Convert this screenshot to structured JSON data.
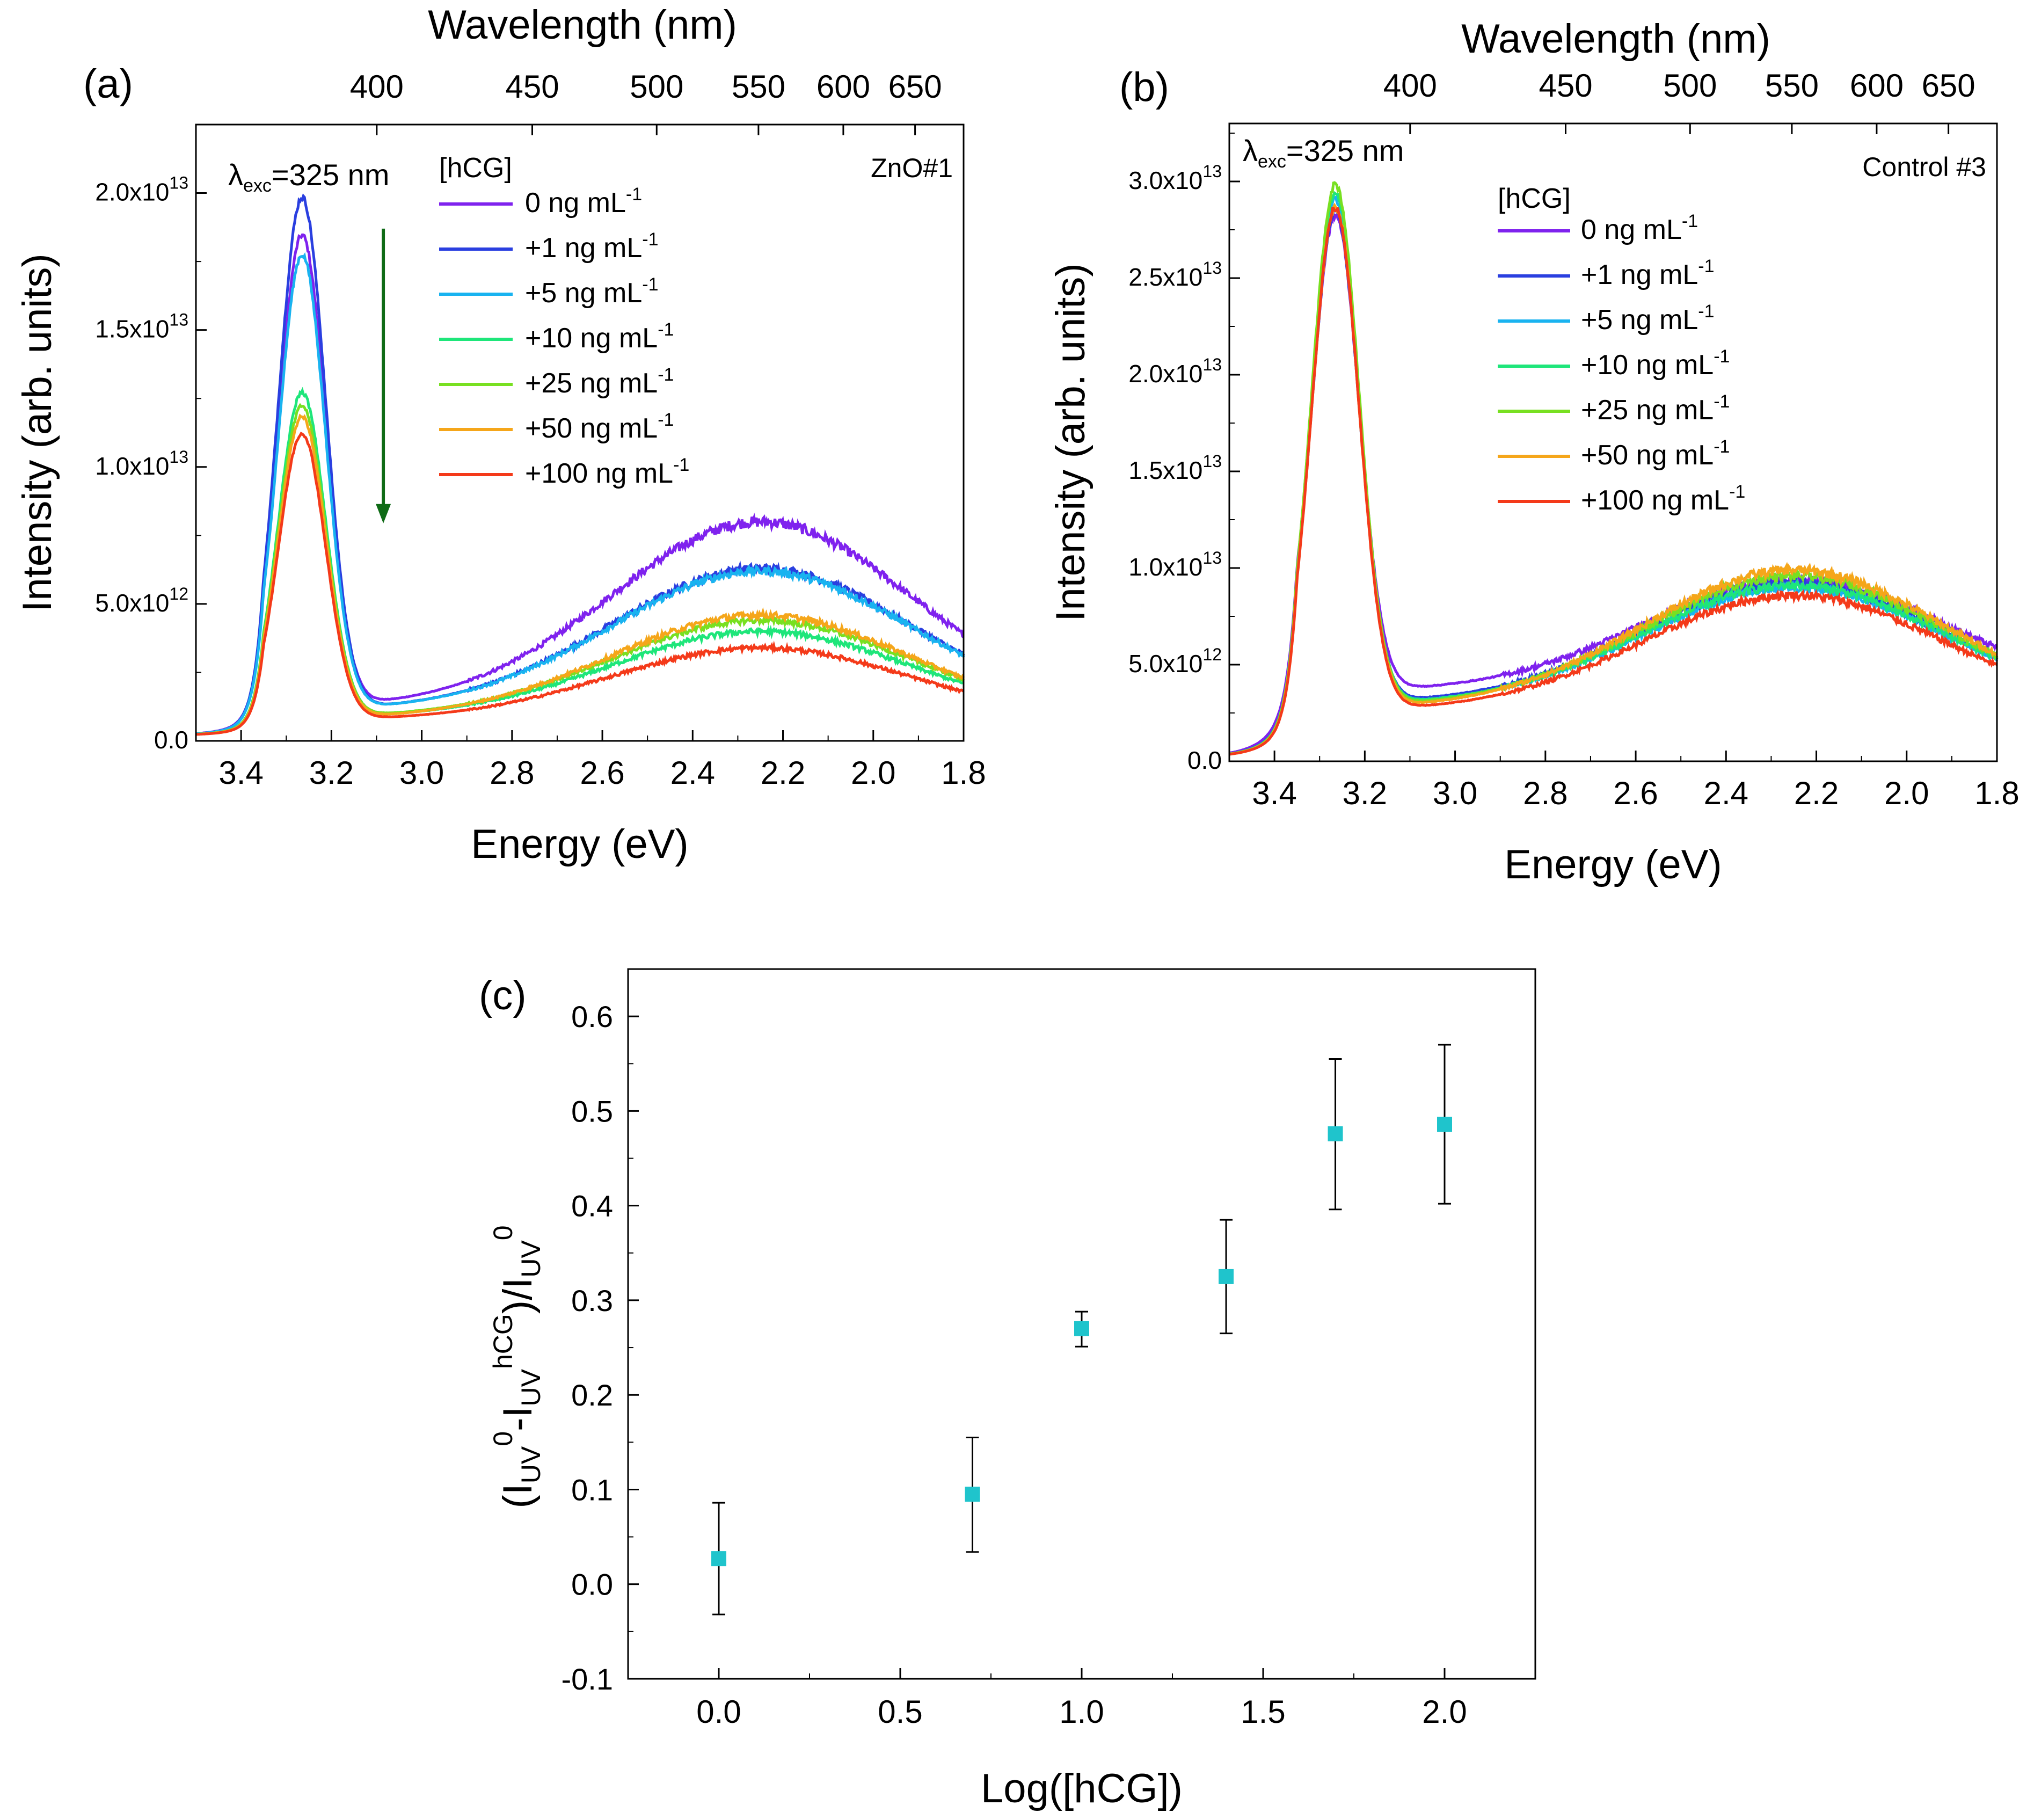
{
  "colors": {
    "series": [
      "#7f22ee",
      "#2a3fe0",
      "#19b3f0",
      "#1ee67a",
      "#78e021",
      "#f5a61a",
      "#f43a1a"
    ],
    "arrow": "#0f6b16",
    "marker": "#1fc4cc",
    "axis": "#000000"
  },
  "legend_entries": [
    "0 ng mL",
    "+1 ng mL",
    "+5 ng mL",
    "+10 ng mL",
    "+25 ng mL",
    "+50 ng mL",
    "+100 ng mL"
  ],
  "legend_superscript": "-1",
  "chart_data": [
    {
      "id": "a",
      "type": "line",
      "panel_label": "(a)",
      "corner_label": "ZnO#1",
      "top_axis_title": "Wavelength (nm)",
      "top_ticks": [
        "400",
        "450",
        "500",
        "550",
        "600",
        "650"
      ],
      "top_tick_values": [
        400,
        450,
        500,
        550,
        600,
        650
      ],
      "xlabel": "Energy (eV)",
      "ylabel": "Intensity (arb. units)",
      "xlim": [
        3.5,
        1.8
      ],
      "ylim": [
        0,
        22500000000000.0
      ],
      "xticks": [
        3.4,
        3.2,
        3.0,
        2.8,
        2.6,
        2.4,
        2.2,
        2.0,
        1.8
      ],
      "xtick_labels": [
        "3.4",
        "3.2",
        "3.0",
        "2.8",
        "2.6",
        "2.4",
        "2.2",
        "2.0",
        "1.8"
      ],
      "yticks": [
        0,
        5000000000000.0,
        10000000000000.0,
        15000000000000.0,
        20000000000000.0
      ],
      "ytick_mantissa": [
        "0.0",
        "5.0x10",
        "1.0x10",
        "1.5x10",
        "2.0x10"
      ],
      "ytick_exponent": [
        "",
        "12",
        "13",
        "13",
        "13"
      ],
      "excitation_prefix": "λ",
      "excitation_sub": "exc",
      "excitation_value": "=325 nm",
      "legend_title": "[hCG]",
      "arrow": {
        "x": 3.085,
        "y_from": 18700000000000.0,
        "y_to": 8100000000000.0
      },
      "series": [
        {
          "name": "0 ng mL-1",
          "uv_peak": 18400000000000.0,
          "min": 1200000000000.0,
          "vis_peak": 8000000000000.0
        },
        {
          "name": "+1 ng mL-1",
          "uv_peak": 19800000000000.0,
          "min": 1100000000000.0,
          "vis_peak": 6300000000000.0
        },
        {
          "name": "+5 ng mL-1",
          "uv_peak": 17700000000000.0,
          "min": 1100000000000.0,
          "vis_peak": 6200000000000.0
        },
        {
          "name": "+10 ng mL-1",
          "uv_peak": 12700000000000.0,
          "min": 850000000000.0,
          "vis_peak": 4000000000000.0
        },
        {
          "name": "+25 ng mL-1",
          "uv_peak": 12200000000000.0,
          "min": 850000000000.0,
          "vis_peak": 4400000000000.0
        },
        {
          "name": "+50 ng mL-1",
          "uv_peak": 11800000000000.0,
          "min": 800000000000.0,
          "vis_peak": 4600000000000.0
        },
        {
          "name": "+100 ng mL-1",
          "uv_peak": 11200000000000.0,
          "min": 750000000000.0,
          "vis_peak": 3400000000000.0
        }
      ]
    },
    {
      "id": "b",
      "type": "line",
      "panel_label": "(b)",
      "corner_label": "Control #3",
      "top_axis_title": "Wavelength (nm)",
      "top_ticks": [
        "400",
        "450",
        "500",
        "550",
        "600",
        "650"
      ],
      "top_tick_values": [
        400,
        450,
        500,
        550,
        600,
        650
      ],
      "xlabel": "Energy (eV)",
      "ylabel": "Intensity (arb. units)",
      "xlim": [
        3.5,
        1.8
      ],
      "ylim": [
        0,
        33000000000000.0
      ],
      "xticks": [
        3.4,
        3.2,
        3.0,
        2.8,
        2.6,
        2.4,
        2.2,
        2.0,
        1.8
      ],
      "xtick_labels": [
        "3.4",
        "3.2",
        "3.0",
        "2.8",
        "2.6",
        "2.4",
        "2.2",
        "2.0",
        "1.8"
      ],
      "yticks": [
        0,
        5000000000000.0,
        10000000000000.0,
        15000000000000.0,
        20000000000000.0,
        25000000000000.0,
        30000000000000.0
      ],
      "ytick_mantissa": [
        "0.0",
        "5.0x10",
        "1.0x10",
        "1.5x10",
        "2.0x10",
        "2.5x10",
        "3.0x10"
      ],
      "ytick_exponent": [
        "",
        "12",
        "13",
        "13",
        "13",
        "13",
        "13"
      ],
      "excitation_prefix": "λ",
      "excitation_sub": "exc",
      "excitation_value": "=325 nm",
      "legend_title": "[hCG]",
      "series": [
        {
          "name": "0 ng mL-1",
          "uv_peak": 28200000000000.0,
          "min": 3600000000000.0,
          "vis_peak": 9400000000000.0
        },
        {
          "name": "+1 ng mL-1",
          "uv_peak": 28400000000000.0,
          "min": 3000000000000.0,
          "vis_peak": 9200000000000.0
        },
        {
          "name": "+5 ng mL-1",
          "uv_peak": 29000000000000.0,
          "min": 2900000000000.0,
          "vis_peak": 9000000000000.0
        },
        {
          "name": "+10 ng mL-1",
          "uv_peak": 29400000000000.0,
          "min": 2900000000000.0,
          "vis_peak": 9100000000000.0
        },
        {
          "name": "+25 ng mL-1",
          "uv_peak": 29800000000000.0,
          "min": 2800000000000.0,
          "vis_peak": 9600000000000.0
        },
        {
          "name": "+50 ng mL-1",
          "uv_peak": 28600000000000.0,
          "min": 2700000000000.0,
          "vis_peak": 9900000000000.0
        },
        {
          "name": "+100 ng mL-1",
          "uv_peak": 28600000000000.0,
          "min": 2600000000000.0,
          "vis_peak": 8600000000000.0
        }
      ]
    },
    {
      "id": "c",
      "type": "scatter",
      "panel_label": "(c)",
      "xlabel": "Log([hCG])",
      "ylabel_parts": [
        "(I",
        "UV",
        "0",
        "-I",
        "UV",
        "hCG",
        ")/I",
        "UV",
        "0"
      ],
      "xlim": [
        -0.25,
        2.25
      ],
      "ylim": [
        -0.1,
        0.65
      ],
      "xticks": [
        0.0,
        0.5,
        1.0,
        1.5,
        2.0
      ],
      "xtick_labels": [
        "0.0",
        "0.5",
        "1.0",
        "1.5",
        "2.0"
      ],
      "yticks": [
        -0.1,
        0.0,
        0.1,
        0.2,
        0.3,
        0.4,
        0.5,
        0.6
      ],
      "ytick_labels": [
        "-0.1",
        "0.0",
        "0.1",
        "0.2",
        "0.3",
        "0.4",
        "0.5",
        "0.6"
      ],
      "x": [
        0.0,
        0.699,
        1.0,
        1.398,
        1.699,
        2.0
      ],
      "y": [
        0.027,
        0.095,
        0.27,
        0.325,
        0.476,
        0.486
      ],
      "err_low": [
        0.059,
        0.061,
        0.019,
        0.06,
        0.08,
        0.084
      ],
      "err_high": [
        0.059,
        0.06,
        0.018,
        0.06,
        0.079,
        0.084
      ]
    }
  ]
}
